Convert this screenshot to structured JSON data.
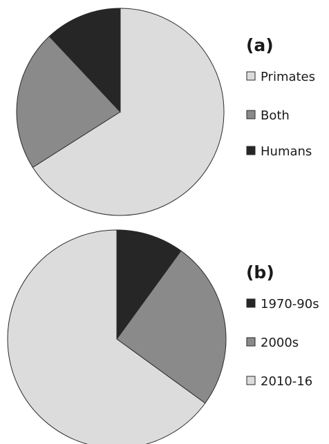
{
  "chart_data": [
    {
      "type": "pie",
      "panel_label": "(a)",
      "slices": [
        {
          "label": "Primates",
          "value": 66,
          "color": "#dcdcdc"
        },
        {
          "label": "Both",
          "value": 22,
          "color": "#8a8a8a"
        },
        {
          "label": "Humans",
          "value": 12,
          "color": "#262626"
        }
      ],
      "legend": [
        "Primates",
        "Both",
        "Humans"
      ],
      "legend_colors": [
        "#dcdcdc",
        "#8a8a8a",
        "#262626"
      ],
      "legend_placement": "right"
    },
    {
      "type": "pie",
      "panel_label": "(b)",
      "slices": [
        {
          "label": "1970-90s",
          "value": 10,
          "color": "#262626"
        },
        {
          "label": "2000s",
          "value": 25,
          "color": "#8a8a8a"
        },
        {
          "label": "2010-16",
          "value": 65,
          "color": "#dcdcdc"
        }
      ],
      "legend": [
        "1970-90s",
        "2000s",
        "2010-16"
      ],
      "legend_colors": [
        "#262626",
        "#8a8a8a",
        "#dcdcdc"
      ],
      "legend_placement": "right"
    }
  ]
}
